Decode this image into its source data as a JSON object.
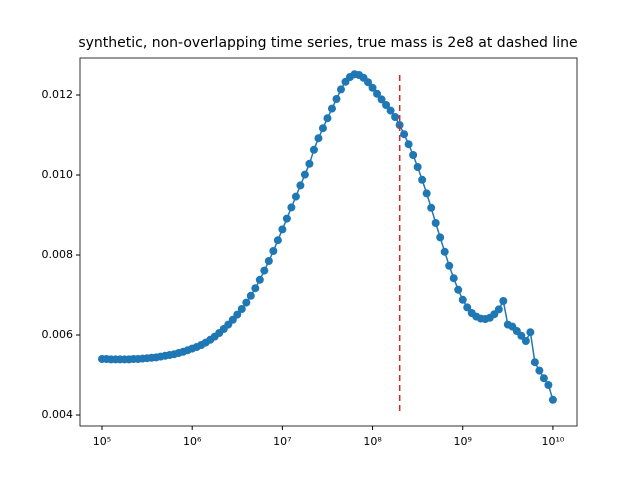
{
  "chart_data": {
    "type": "line",
    "title": "synthetic, non-overlapping time series, true mass is 2e8 at dashed line",
    "xscale": "log",
    "xlim": [
      57000,
      18500000000
    ],
    "ylim": [
      0.003725,
      0.012925
    ],
    "xticks": [
      {
        "value": 100000,
        "label": "10⁵"
      },
      {
        "value": 1000000,
        "label": "10⁶"
      },
      {
        "value": 10000000,
        "label": "10⁷"
      },
      {
        "value": 100000000,
        "label": "10⁸"
      },
      {
        "value": 1000000000,
        "label": "10⁹"
      },
      {
        "value": 10000000000,
        "label": "10¹⁰"
      }
    ],
    "yticks": [
      0.004,
      0.006,
      0.008,
      0.01,
      0.012
    ],
    "yticklabels": [
      "0.004",
      "0.006",
      "0.008",
      "0.010",
      "0.012"
    ],
    "series": [
      {
        "color": "#1f77b4",
        "marker": "o",
        "x": [
          100000,
          112202,
          125893,
          141254,
          158489,
          177828,
          199526,
          223872,
          251189,
          281838,
          316228,
          354813,
          398107,
          446684,
          501187,
          562341,
          630957,
          707946,
          794328,
          891251,
          1000000,
          1122018,
          1258925,
          1412538,
          1584893,
          1778279,
          1995262,
          2238721,
          2511886,
          2818383,
          3162278,
          3548134,
          3981072,
          4466836,
          5011872,
          5623413,
          6309573,
          7079458,
          7943282,
          8912509,
          10000000,
          11220185,
          12589254,
          14125375,
          15848932,
          17782794,
          19952623,
          22387211,
          25118864,
          28183829,
          31622777,
          35481339,
          39810717,
          44668359,
          50118723,
          56234133,
          63095734,
          70794578,
          79432823,
          89125094,
          100000000,
          112201845,
          125892541,
          141253754,
          158489319,
          177827941,
          199526231,
          223872114,
          251188643,
          281838293,
          316227766,
          354813389,
          398107171,
          446683592,
          501187234,
          562341325,
          630957344,
          707945784,
          794328235,
          891250938,
          1000000000,
          1122018454,
          1258925412,
          1412537545,
          1584893192,
          1778279410,
          1995262315,
          2238721139,
          2511886432,
          2818382931,
          3162277660,
          3548133892,
          3981071706,
          4466835922,
          5011872336,
          5623413252,
          6309573445,
          7079457844,
          7943282347,
          8912509381,
          10000000000
        ],
        "values": [
          0.0054,
          0.0054,
          0.00539,
          0.00539,
          0.00539,
          0.00539,
          0.00539,
          0.0054,
          0.0054,
          0.00541,
          0.00542,
          0.00543,
          0.00544,
          0.00546,
          0.00548,
          0.0055,
          0.00552,
          0.00555,
          0.00558,
          0.00562,
          0.00566,
          0.0057,
          0.00575,
          0.00581,
          0.00588,
          0.00596,
          0.00605,
          0.00615,
          0.00626,
          0.00638,
          0.00651,
          0.00665,
          0.00681,
          0.00698,
          0.00717,
          0.00738,
          0.00761,
          0.00785,
          0.0081,
          0.00837,
          0.00864,
          0.00891,
          0.00919,
          0.00946,
          0.00974,
          0.01001,
          0.01028,
          0.01063,
          0.01092,
          0.01117,
          0.01142,
          0.01166,
          0.0119,
          0.01214,
          0.01233,
          0.01245,
          0.01252,
          0.0125,
          0.01243,
          0.01232,
          0.01218,
          0.01203,
          0.01189,
          0.01175,
          0.01161,
          0.01145,
          0.01125,
          0.01102,
          0.01077,
          0.0105,
          0.0102,
          0.00988,
          0.00954,
          0.00918,
          0.0088,
          0.00844,
          0.00808,
          0.00773,
          0.00742,
          0.00713,
          0.00688,
          0.00669,
          0.00655,
          0.00646,
          0.00641,
          0.0064,
          0.00643,
          0.00652,
          0.00664,
          0.00685,
          0.00626,
          0.00621,
          0.0061,
          0.00598,
          0.00585,
          0.00607,
          0.00532,
          0.00511,
          0.00492,
          0.00475,
          0.00438
        ]
      }
    ],
    "vline": {
      "x": 200000000,
      "ymin": 0.0041,
      "ymax": 0.0125,
      "color": "#d62728",
      "style": "dashed"
    }
  }
}
